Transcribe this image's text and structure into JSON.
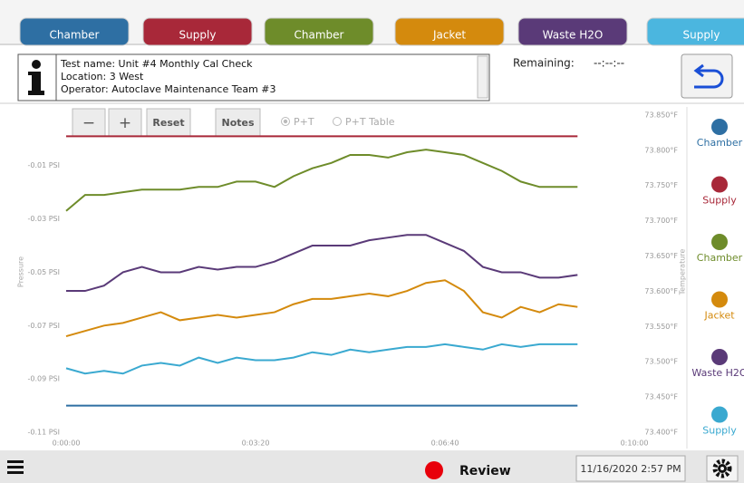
{
  "tabs": [
    {
      "label": "Chamber",
      "color": "#2e6fa3"
    },
    {
      "label": "Supply",
      "color": "#a82839"
    },
    {
      "label": "Chamber",
      "color": "#6e8c2a"
    },
    {
      "label": "Jacket",
      "color": "#d48a0d"
    },
    {
      "label": "Waste H2O",
      "color": "#5a3a78"
    },
    {
      "label": "Supply",
      "color": "#4bb6df"
    }
  ],
  "info": {
    "lines": [
      "Test name:  Unit #4 Monthly Cal Check",
      "Location: 3 West",
      "Operator: Autoclave Maintenance Team #3"
    ],
    "remaining_label": "Remaining:",
    "remaining_value": "--:--:--"
  },
  "toolbar": {
    "buttons": [
      "−",
      "+",
      "Reset",
      "Notes"
    ],
    "radios": [
      "P+T",
      "P+T Table"
    ]
  },
  "chart_data": {
    "type": "line",
    "ylabel": "Pressure",
    "y2label": "Temperature",
    "x": [
      0,
      20,
      40,
      60,
      80,
      100,
      120,
      140,
      160,
      180,
      200,
      220,
      240,
      260,
      280,
      300,
      320,
      340,
      360,
      380,
      400,
      420,
      440,
      460,
      480,
      500,
      520,
      540
    ],
    "xlim": [
      0,
      600
    ],
    "xticks": [
      {
        "value": 0,
        "label": "0:00:00"
      },
      {
        "value": 200,
        "label": "0:03:20"
      },
      {
        "value": 400,
        "label": "0:06:40"
      },
      {
        "value": 600,
        "label": "0:10:00"
      }
    ],
    "ylim": [
      -0.11,
      0.012
    ],
    "yticks": [
      {
        "value": -0.11,
        "label": "-0.11 PSI"
      },
      {
        "value": -0.09,
        "label": "-0.09 PSI"
      },
      {
        "value": -0.07,
        "label": "-0.07 PSI"
      },
      {
        "value": -0.05,
        "label": "-0.05 PSI"
      },
      {
        "value": -0.03,
        "label": "-0.03 PSI"
      },
      {
        "value": -0.01,
        "label": "-0.01 PSI"
      }
    ],
    "y2lim": [
      73.4,
      73.855
    ],
    "y2ticks": [
      {
        "value": 73.4,
        "label": "73.400°F"
      },
      {
        "value": 73.45,
        "label": "73.450°F"
      },
      {
        "value": 73.5,
        "label": "73.500°F"
      },
      {
        "value": 73.55,
        "label": "73.550°F"
      },
      {
        "value": 73.6,
        "label": "73.600°F"
      },
      {
        "value": 73.65,
        "label": "73.650°F"
      },
      {
        "value": 73.7,
        "label": "73.700°F"
      },
      {
        "value": 73.75,
        "label": "73.750°F"
      },
      {
        "value": 73.8,
        "label": "73.800°F"
      },
      {
        "value": 73.85,
        "label": "73.850°F"
      }
    ],
    "grid": false,
    "legend": "right",
    "series": [
      {
        "name": "Chamber",
        "color": "#2e6fa3",
        "values": [
          -0.1,
          -0.1,
          -0.1,
          -0.1,
          -0.1,
          -0.1,
          -0.1,
          -0.1,
          -0.1,
          -0.1,
          -0.1,
          -0.1,
          -0.1,
          -0.1,
          -0.1,
          -0.1,
          -0.1,
          -0.1,
          -0.1,
          -0.1,
          -0.1,
          -0.1,
          -0.1,
          -0.1,
          -0.1,
          -0.1,
          -0.1,
          -0.1
        ]
      },
      {
        "name": "Supply",
        "color": "#a82839",
        "values": [
          0.001,
          0.001,
          0.001,
          0.001,
          0.001,
          0.001,
          0.001,
          0.001,
          0.001,
          0.001,
          0.001,
          0.001,
          0.001,
          0.001,
          0.001,
          0.001,
          0.001,
          0.001,
          0.001,
          0.001,
          0.001,
          0.001,
          0.001,
          0.001,
          0.001,
          0.001,
          0.001,
          0.001
        ]
      },
      {
        "name": "Chamber",
        "color": "#6e8c2a",
        "values": [
          -0.027,
          -0.021,
          -0.021,
          -0.02,
          -0.019,
          -0.019,
          -0.019,
          -0.018,
          -0.018,
          -0.016,
          -0.016,
          -0.018,
          -0.014,
          -0.011,
          -0.009,
          -0.006,
          -0.006,
          -0.007,
          -0.005,
          -0.004,
          -0.005,
          -0.006,
          -0.009,
          -0.012,
          -0.016,
          -0.018,
          -0.018,
          -0.018
        ]
      },
      {
        "name": "Jacket",
        "color": "#d48a0d",
        "values": [
          -0.074,
          -0.072,
          -0.07,
          -0.069,
          -0.067,
          -0.065,
          -0.068,
          -0.067,
          -0.066,
          -0.067,
          -0.066,
          -0.065,
          -0.062,
          -0.06,
          -0.06,
          -0.059,
          -0.058,
          -0.059,
          -0.057,
          -0.054,
          -0.053,
          -0.057,
          -0.065,
          -0.067,
          -0.063,
          -0.065,
          -0.062,
          -0.063
        ]
      },
      {
        "name": "Waste H2O",
        "color": "#5a3a78",
        "values": [
          -0.057,
          -0.057,
          -0.055,
          -0.05,
          -0.048,
          -0.05,
          -0.05,
          -0.048,
          -0.049,
          -0.048,
          -0.048,
          -0.046,
          -0.043,
          -0.04,
          -0.04,
          -0.04,
          -0.038,
          -0.037,
          -0.036,
          -0.036,
          -0.039,
          -0.042,
          -0.048,
          -0.05,
          -0.05,
          -0.052,
          -0.052,
          -0.051
        ]
      },
      {
        "name": "Supply",
        "color": "#3aa9d0",
        "values": [
          -0.086,
          -0.088,
          -0.087,
          -0.088,
          -0.085,
          -0.084,
          -0.085,
          -0.082,
          -0.084,
          -0.082,
          -0.083,
          -0.083,
          -0.082,
          -0.08,
          -0.081,
          -0.079,
          -0.08,
          -0.079,
          -0.078,
          -0.078,
          -0.077,
          -0.078,
          -0.079,
          -0.077,
          -0.078,
          -0.077,
          -0.077,
          -0.077
        ]
      }
    ]
  },
  "footer": {
    "status": "Review",
    "datetime": "11/16/2020 2:57 PM"
  }
}
